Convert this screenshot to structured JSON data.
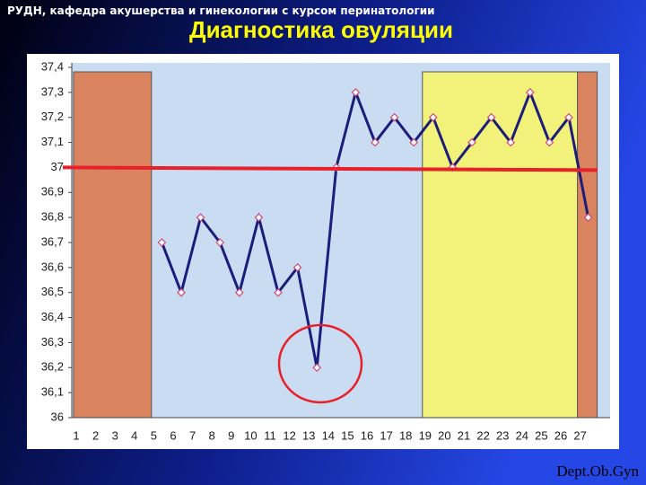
{
  "header": "РУДН, кафедра акушерства и гинекологии с курсом перинатологии",
  "footer": "Dept.Ob.Gyn",
  "chart_data": {
    "type": "line",
    "title": "Диагностика овуляции",
    "categories": [
      "1",
      "2",
      "3",
      "4",
      "5",
      "6",
      "7",
      "8",
      "9",
      "10",
      "11",
      "12",
      "13",
      "14",
      "15",
      "16",
      "17",
      "18",
      "19",
      "20",
      "21",
      "22",
      "23",
      "24",
      "25",
      "26",
      "27"
    ],
    "values": [
      null,
      null,
      null,
      null,
      36.7,
      36.5,
      36.8,
      36.7,
      36.5,
      36.8,
      36.5,
      36.6,
      36.2,
      37.0,
      37.3,
      37.1,
      37.2,
      37.1,
      37.2,
      37.0,
      37.1,
      37.2,
      37.1,
      37.3,
      37.1,
      37.2,
      36.8
    ],
    "color": "#1c1c7a",
    "marker_color": "#d04a7a",
    "ylim": [
      36,
      37.4
    ],
    "yticks": [
      {
        "value": 36,
        "label": "36"
      },
      {
        "value": 36.1,
        "label": "36,1"
      },
      {
        "value": 36.2,
        "label": "36,2"
      },
      {
        "value": 36.3,
        "label": "36,3"
      },
      {
        "value": 36.4,
        "label": "36,4"
      },
      {
        "value": 36.5,
        "label": "36,5"
      },
      {
        "value": 36.6,
        "label": "36,6"
      },
      {
        "value": 36.7,
        "label": "36,7"
      },
      {
        "value": 36.8,
        "label": "36,8"
      },
      {
        "value": 36.9,
        "label": "36,9"
      },
      {
        "value": 37,
        "label": "37"
      },
      {
        "value": 37.1,
        "label": "37,1"
      },
      {
        "value": 37.2,
        "label": "37,2"
      },
      {
        "value": 37.3,
        "label": "37,3"
      },
      {
        "value": 37.4,
        "label": "37,4"
      }
    ],
    "threshold": {
      "value": 37,
      "color": "#e8202a"
    },
    "bands": [
      {
        "start": 1,
        "end": 4,
        "color": "#d9835f"
      },
      {
        "start": 19,
        "end": 26,
        "color": "#f2f27a"
      },
      {
        "start": 27,
        "end": 27,
        "color": "#d9835f"
      }
    ]
  }
}
